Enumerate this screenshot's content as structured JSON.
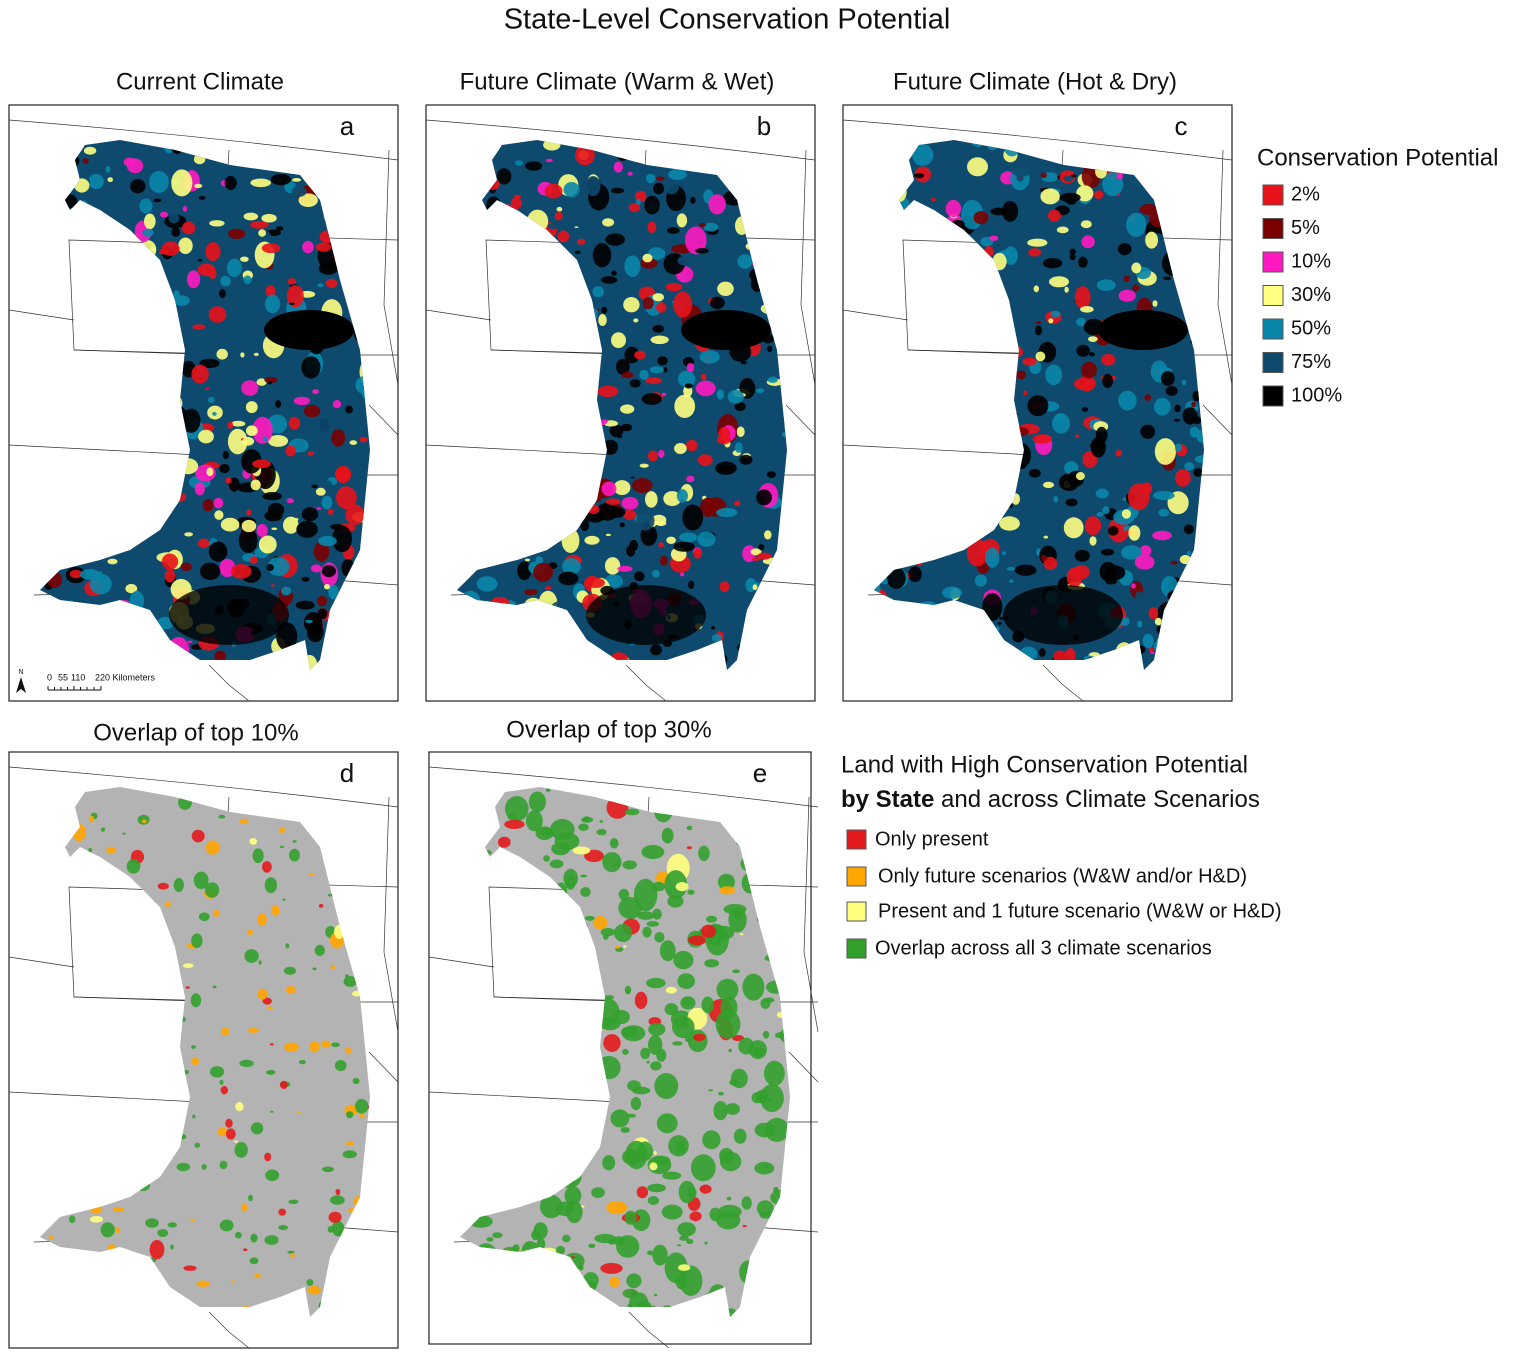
{
  "title": "State-Level Conservation Potential",
  "panels": [
    {
      "title": "Current Climate",
      "letter": "a"
    },
    {
      "title": "Future Climate (Warm & Wet)",
      "letter": "b"
    },
    {
      "title": "Future Climate (Hot & Dry)",
      "letter": "c"
    },
    {
      "title": "Overlap of top 10%",
      "letter": "d"
    },
    {
      "title": "Overlap of top 30%",
      "letter": "e"
    }
  ],
  "scale_bar": {
    "north": "N",
    "labels": [
      "0",
      "55",
      "110",
      "220 Kilometers"
    ]
  },
  "legend_potential": {
    "title": "Conservation Potential",
    "items": [
      {
        "label": "2%",
        "color": "#e8121a"
      },
      {
        "label": "5%",
        "color": "#7a0000"
      },
      {
        "label": "10%",
        "color": "#ff19c0"
      },
      {
        "label": "30%",
        "color": "#ffff80"
      },
      {
        "label": "50%",
        "color": "#0a86aa"
      },
      {
        "label": "75%",
        "color": "#0d4a6e"
      },
      {
        "label": "100%",
        "color": "#000000"
      }
    ]
  },
  "legend_overlap": {
    "title_line1": "Land with High Conservation Potential",
    "title_bold": "by State",
    "title_rest": " and across Climate Scenarios",
    "items": [
      {
        "label": "Only present",
        "color": "#e31a1c"
      },
      {
        "label": "Only future scenarios (W&W and/or H&D)",
        "color": "#ffa500"
      },
      {
        "label": "Present and 1 future scenario (W&W or H&D)",
        "color": "#ffff80"
      },
      {
        "label": "Overlap across all 3 climate scenarios",
        "color": "#33a02c"
      }
    ]
  }
}
